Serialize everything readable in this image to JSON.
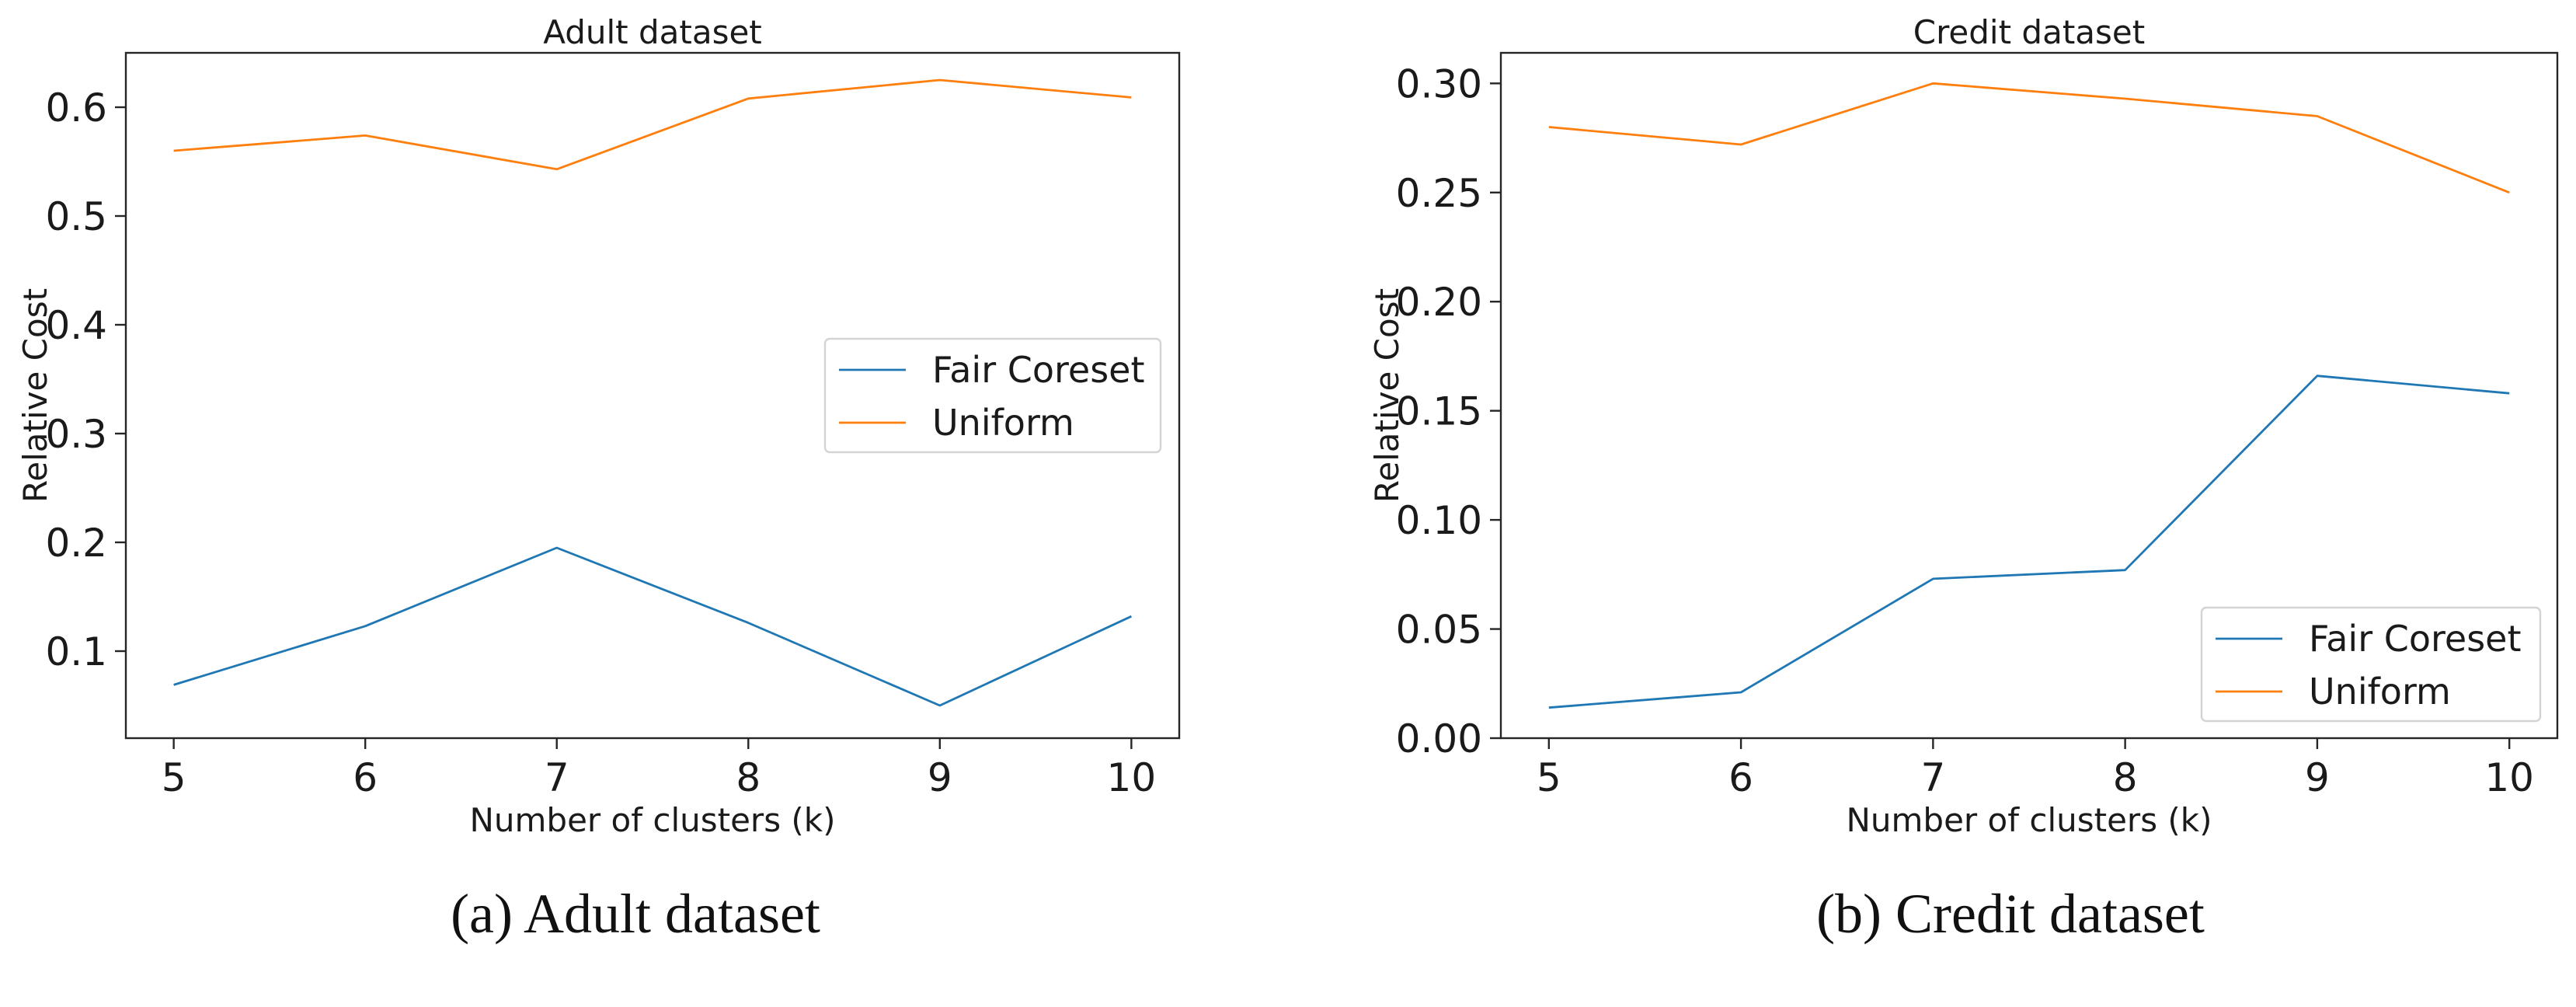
{
  "chart_data": [
    {
      "type": "line",
      "title": "Adult dataset",
      "xlabel": "Number of clusters (k)",
      "ylabel": "Relative Cost",
      "x": [
        5,
        6,
        7,
        8,
        9,
        10
      ],
      "xlim": [
        4.75,
        10.25
      ],
      "ylim": [
        0.02,
        0.65
      ],
      "yticks": [
        0.1,
        0.2,
        0.3,
        0.4,
        0.5,
        0.6
      ],
      "ytick_labels": [
        "0.1",
        "0.2",
        "0.3",
        "0.4",
        "0.5",
        "0.6"
      ],
      "xtick_labels": [
        "5",
        "6",
        "7",
        "8",
        "9",
        "10"
      ],
      "legend_position": "center-right",
      "grid": false,
      "series": [
        {
          "name": "Fair Coreset",
          "color": "#1f77b4",
          "values": [
            0.069,
            0.123,
            0.195,
            0.126,
            0.05,
            0.132
          ]
        },
        {
          "name": "Uniform",
          "color": "#ff7f0e",
          "values": [
            0.56,
            0.574,
            0.543,
            0.608,
            0.625,
            0.609
          ]
        }
      ],
      "caption": "(a) Adult dataset"
    },
    {
      "type": "line",
      "title": "Credit dataset",
      "xlabel": "Number of clusters (k)",
      "ylabel": "Relative Cost",
      "x": [
        5,
        6,
        7,
        8,
        9,
        10
      ],
      "xlim": [
        4.75,
        10.25
      ],
      "ylim": [
        0.0,
        0.314
      ],
      "yticks": [
        0.0,
        0.05,
        0.1,
        0.15,
        0.2,
        0.25,
        0.3
      ],
      "ytick_labels": [
        "0.00",
        "0.05",
        "0.10",
        "0.15",
        "0.20",
        "0.25",
        "0.30"
      ],
      "xtick_labels": [
        "5",
        "6",
        "7",
        "8",
        "9",
        "10"
      ],
      "legend_position": "lower-right",
      "grid": false,
      "series": [
        {
          "name": "Fair Coreset",
          "color": "#1f77b4",
          "values": [
            0.014,
            0.021,
            0.073,
            0.077,
            0.166,
            0.158
          ]
        },
        {
          "name": "Uniform",
          "color": "#ff7f0e",
          "values": [
            0.28,
            0.272,
            0.3,
            0.293,
            0.285,
            0.25
          ]
        }
      ],
      "caption": "(b) Credit dataset"
    }
  ]
}
